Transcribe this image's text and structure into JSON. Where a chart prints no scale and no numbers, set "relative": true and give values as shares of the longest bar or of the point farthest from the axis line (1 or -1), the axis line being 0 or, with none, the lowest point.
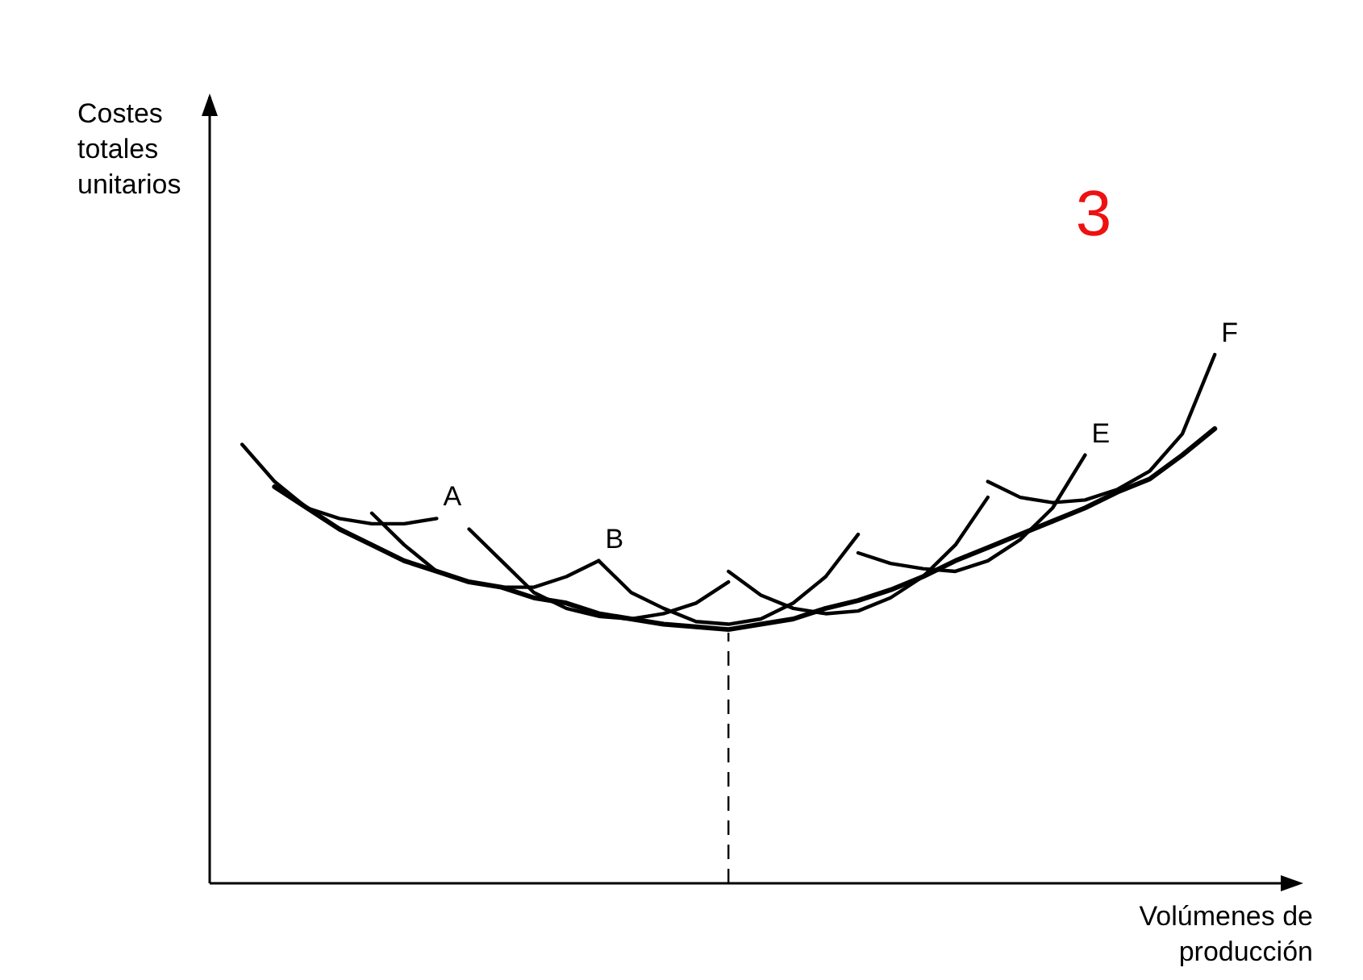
{
  "chart_data": {
    "type": "line",
    "relative": true,
    "xlabel": "Volúmenes de producción",
    "annotations": [
      "Costes totales unitarios",
      "3"
    ],
    "categories": [
      null,
      null,
      null,
      null,
      null,
      null,
      null,
      null,
      null,
      null,
      null,
      null,
      null,
      null,
      null,
      null,
      null,
      null,
      null,
      null,
      null,
      null,
      null,
      null,
      null,
      null,
      null,
      null,
      null,
      null,
      null,
      null,
      null
    ],
    "series": [
      {
        "color": "#000000",
        "values": [
          null,
          null,
          0.75,
          0.71,
          0.67,
          0.64,
          0.61,
          0.59,
          0.57,
          0.56,
          0.54,
          0.53,
          0.51,
          0.5,
          0.49,
          0.485,
          0.48,
          0.49,
          0.5,
          0.52,
          0.535,
          0.555,
          0.58,
          0.61,
          0.635,
          0.66,
          0.685,
          0.71,
          0.74,
          0.765,
          0.81,
          0.86,
          null
        ]
      },
      {
        "name": "A",
        "color": "#000000",
        "values": [
          null,
          0.83,
          0.76,
          0.71,
          0.69,
          0.68,
          0.68,
          0.69,
          null,
          null,
          null,
          null,
          null,
          null,
          null,
          null,
          null,
          null,
          null,
          null,
          null,
          null,
          null,
          null,
          null,
          null,
          null,
          null,
          null,
          null,
          null,
          null,
          null
        ]
      },
      {
        "name": "B",
        "color": "#000000",
        "values": [
          null,
          null,
          null,
          null,
          null,
          0.7,
          0.64,
          0.59,
          0.57,
          0.56,
          0.56,
          0.58,
          0.61,
          null,
          null,
          null,
          null,
          null,
          null,
          null,
          null,
          null,
          null,
          null,
          null,
          null,
          null,
          null,
          null,
          null,
          null,
          null,
          null
        ]
      },
      {
        "color": "#000000",
        "values": [
          null,
          null,
          null,
          null,
          null,
          null,
          null,
          null,
          0.67,
          0.61,
          0.55,
          0.52,
          0.505,
          0.5,
          0.51,
          0.53,
          0.57,
          null,
          null,
          null,
          null,
          null,
          null,
          null,
          null,
          null,
          null,
          null,
          null,
          null,
          null,
          null,
          null
        ]
      },
      {
        "color": "#000000",
        "values": [
          null,
          null,
          null,
          null,
          null,
          null,
          null,
          null,
          null,
          null,
          null,
          null,
          0.61,
          0.55,
          0.52,
          0.495,
          0.49,
          0.5,
          0.53,
          0.58,
          0.66,
          null,
          null,
          null,
          null,
          null,
          null,
          null,
          null,
          null,
          null,
          null,
          null
        ]
      },
      {
        "color": "#000000",
        "values": [
          null,
          null,
          null,
          null,
          null,
          null,
          null,
          null,
          null,
          null,
          null,
          null,
          null,
          null,
          null,
          null,
          0.59,
          0.545,
          0.52,
          0.51,
          0.515,
          0.54,
          0.58,
          0.64,
          0.73,
          null,
          null,
          null,
          null,
          null,
          null,
          null,
          null
        ]
      },
      {
        "name": "E",
        "color": "#000000",
        "values": [
          null,
          null,
          null,
          null,
          null,
          null,
          null,
          null,
          null,
          null,
          null,
          null,
          null,
          null,
          null,
          null,
          null,
          null,
          null,
          null,
          0.625,
          0.605,
          0.595,
          0.59,
          0.61,
          0.65,
          0.71,
          0.81,
          null,
          null,
          null,
          null,
          null
        ]
      },
      {
        "name": "F",
        "color": "#000000",
        "values": [
          null,
          null,
          null,
          null,
          null,
          null,
          null,
          null,
          null,
          null,
          null,
          null,
          null,
          null,
          null,
          null,
          null,
          null,
          null,
          null,
          null,
          null,
          null,
          null,
          0.76,
          0.73,
          0.72,
          0.725,
          0.745,
          0.78,
          0.85,
          1.0,
          null
        ]
      }
    ]
  }
}
